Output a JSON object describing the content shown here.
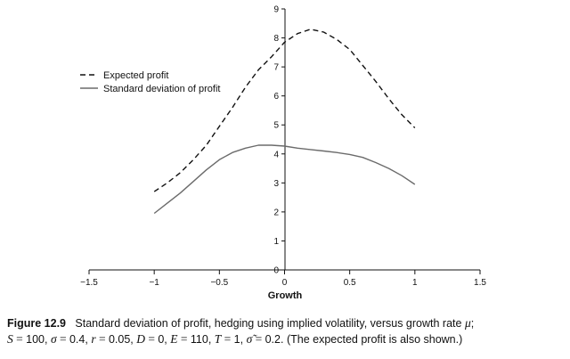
{
  "chart_data": {
    "type": "line",
    "xlabel": "Growth",
    "ylabel": "",
    "xlim": [
      -1.5,
      1.5
    ],
    "ylim": [
      0,
      9
    ],
    "x_ticks": [
      -1.5,
      -1,
      -0.5,
      0,
      0.5,
      1,
      1.5
    ],
    "x_tick_labels": [
      "−1.5",
      "−1",
      "−0.5",
      "0",
      "0.5",
      "1",
      "1.5"
    ],
    "y_ticks": [
      0,
      1,
      2,
      3,
      4,
      5,
      6,
      7,
      8,
      9
    ],
    "y_tick_labels": [
      "0",
      "1",
      "2",
      "3",
      "4",
      "5",
      "6",
      "7",
      "8",
      "9"
    ],
    "grid": false,
    "legend_position": "top-left",
    "series": [
      {
        "name": "Expected profit",
        "style": "dashed",
        "color": "#111111",
        "x": [
          -1,
          -0.9,
          -0.8,
          -0.7,
          -0.6,
          -0.5,
          -0.4,
          -0.3,
          -0.2,
          -0.1,
          0,
          0.1,
          0.2,
          0.3,
          0.4,
          0.5,
          0.6,
          0.7,
          0.8,
          0.9,
          1
        ],
        "y": [
          2.7,
          3.0,
          3.35,
          3.8,
          4.3,
          4.95,
          5.6,
          6.3,
          6.9,
          7.35,
          7.85,
          8.15,
          8.3,
          8.2,
          7.95,
          7.6,
          7.05,
          6.5,
          5.9,
          5.35,
          4.9
        ]
      },
      {
        "name": "Standard deviation of profit",
        "style": "solid",
        "color": "#6b6b6b",
        "x": [
          -1,
          -0.9,
          -0.8,
          -0.7,
          -0.6,
          -0.5,
          -0.4,
          -0.3,
          -0.2,
          -0.1,
          0,
          0.1,
          0.2,
          0.3,
          0.4,
          0.5,
          0.6,
          0.7,
          0.8,
          0.9,
          1
        ],
        "y": [
          1.95,
          2.3,
          2.65,
          3.05,
          3.45,
          3.8,
          4.05,
          4.2,
          4.3,
          4.3,
          4.27,
          4.2,
          4.15,
          4.1,
          4.05,
          3.98,
          3.88,
          3.7,
          3.5,
          3.25,
          2.95
        ]
      }
    ]
  },
  "caption": {
    "label": "Figure 12.9",
    "text": "Standard deviation of profit, hedging using implied volatility, versus growth rate",
    "mu": "μ",
    "semicolon": ";",
    "params": [
      {
        "sym": "S",
        "val": "100"
      },
      {
        "sym": "σ",
        "val": "0.4"
      },
      {
        "sym": "r",
        "val": "0.05"
      },
      {
        "sym": "D",
        "val": "0"
      },
      {
        "sym": "E",
        "val": "110"
      },
      {
        "sym": "T",
        "val": "1"
      },
      {
        "sym": "σ̃",
        "val": "0.2"
      }
    ],
    "note": "(The expected profit is also shown.)"
  }
}
